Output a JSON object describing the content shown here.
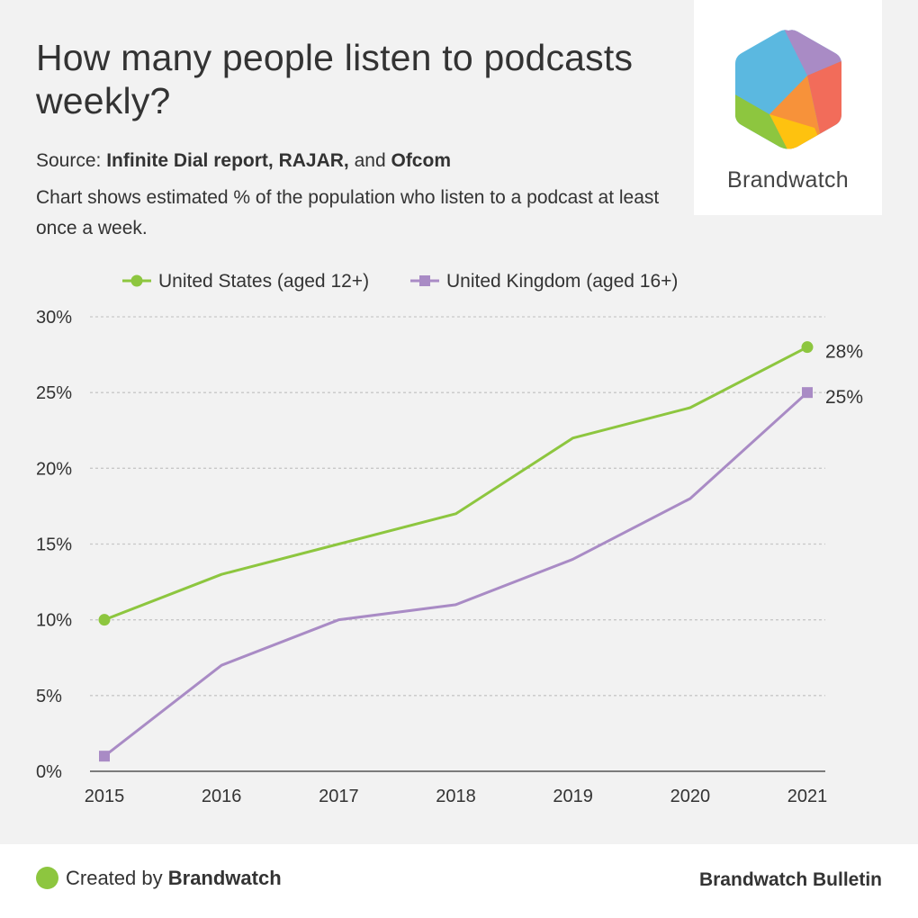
{
  "header": {
    "title": "How many people listen to podcasts weekly?",
    "source_prefix": "Source:",
    "source_part1": "Infinite Dial report, RAJAR,",
    "source_and": "and",
    "source_part2": "Ofcom",
    "description": "Chart shows estimated % of the population who listen to a podcast at least once a week."
  },
  "logo": {
    "text": "Brandwatch"
  },
  "footer": {
    "created_by_prefix": "Created by",
    "created_by_brand": "Brandwatch",
    "publication": "Brandwatch Bulletin"
  },
  "colors": {
    "us": "#8dc63f",
    "uk": "#a98bc5",
    "grid": "#c8c8c8",
    "axis": "#555555"
  },
  "chart_data": {
    "type": "line",
    "title": "How many people listen to podcasts weekly?",
    "xlabel": "",
    "ylabel": "",
    "categories": [
      "2015",
      "2016",
      "2017",
      "2018",
      "2019",
      "2020",
      "2021"
    ],
    "yticks": [
      "0%",
      "5%",
      "10%",
      "15%",
      "20%",
      "25%",
      "30%"
    ],
    "ylim": [
      0,
      30
    ],
    "grid": true,
    "legend_position": "top",
    "series": [
      {
        "name": "United States (aged 12+)",
        "marker": "circle",
        "values": [
          10,
          13,
          15,
          17,
          22,
          24,
          28
        ],
        "end_label": "28%"
      },
      {
        "name": "United Kingdom (aged 16+)",
        "marker": "square",
        "values": [
          1,
          7,
          10,
          11,
          14,
          18,
          25
        ],
        "end_label": "25%"
      }
    ]
  }
}
